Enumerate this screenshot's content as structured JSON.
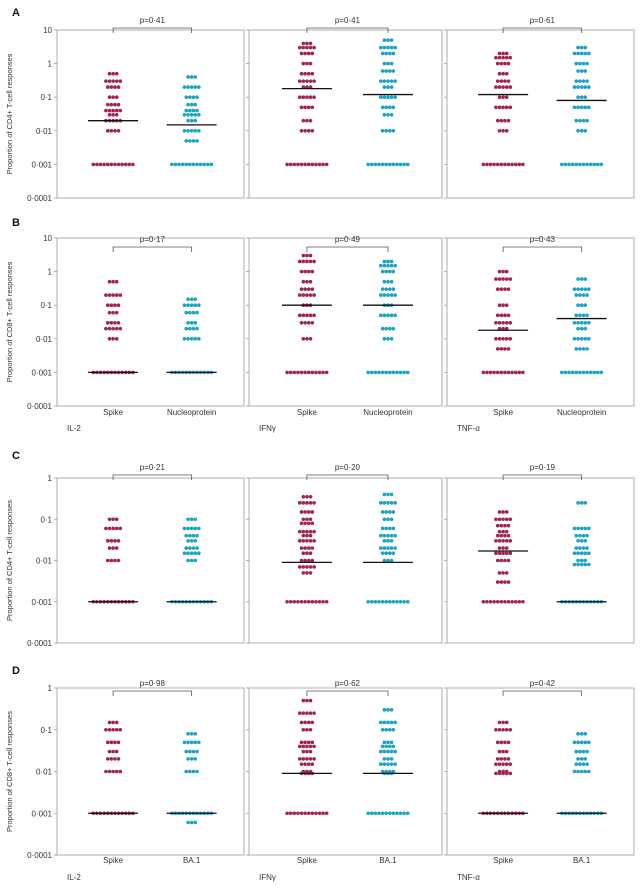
{
  "colors": {
    "spike": "#A3254B",
    "other": "#1AA3C4",
    "frame": "#9a9a9a",
    "median": "#111111"
  },
  "figure": {
    "ytick_labels": [
      "10",
      "1",
      "0·1",
      "0·01",
      "0·001",
      "0·0001"
    ],
    "ytick_labels_short": [
      "1",
      "0·1",
      "0·01",
      "0·001",
      "0·0001"
    ]
  },
  "chart_data": [
    {
      "panel": "A",
      "type": "scatter",
      "ylabel": "Proportion of CD4+ T-cell responses",
      "yscale": "log",
      "ylim": [
        0.0001,
        10
      ],
      "categories": [
        "Spike",
        "Nucleoprotein"
      ],
      "subplots": [
        {
          "cytokine": "IL-2",
          "pvalue": "p=0·41",
          "medians": [
            0.02,
            0.015
          ],
          "series": [
            {
              "name": "Spike",
              "values": [
                0.5,
                0.3,
                0.2,
                0.1,
                0.06,
                0.04,
                0.03,
                0.02,
                0.01,
                0.001
              ]
            },
            {
              "name": "Nucleoprotein",
              "values": [
                0.4,
                0.2,
                0.1,
                0.06,
                0.04,
                0.03,
                0.02,
                0.01,
                0.005,
                0.001
              ]
            }
          ]
        },
        {
          "cytokine": "IFNγ",
          "pvalue": "p=0·41",
          "medians": [
            0.18,
            0.12
          ],
          "series": [
            {
              "name": "Spike",
              "values": [
                4,
                3,
                2,
                1,
                0.5,
                0.3,
                0.2,
                0.1,
                0.05,
                0.02,
                0.01,
                0.001
              ]
            },
            {
              "name": "Nucleoprotein",
              "values": [
                5,
                3,
                2,
                1,
                0.6,
                0.3,
                0.2,
                0.1,
                0.05,
                0.03,
                0.01,
                0.001
              ]
            }
          ]
        },
        {
          "cytokine": "TNF-α",
          "pvalue": "p=0·61",
          "medians": [
            0.12,
            0.08
          ],
          "series": [
            {
              "name": "Spike",
              "values": [
                2,
                1.5,
                1,
                0.5,
                0.3,
                0.2,
                0.1,
                0.05,
                0.02,
                0.01,
                0.001
              ]
            },
            {
              "name": "Nucleoprotein",
              "values": [
                3,
                2,
                1,
                0.6,
                0.3,
                0.2,
                0.1,
                0.05,
                0.02,
                0.01,
                0.001
              ]
            }
          ]
        }
      ]
    },
    {
      "panel": "B",
      "type": "scatter",
      "ylabel": "Proportion of CD8+ T-cell responses",
      "yscale": "log",
      "ylim": [
        0.0001,
        10
      ],
      "categories": [
        "Spike",
        "Nucleoprotein"
      ],
      "subplots": [
        {
          "cytokine": "IL-2",
          "pvalue": "p=0·17",
          "medians": [
            0.001,
            0.001
          ],
          "series": [
            {
              "name": "Spike",
              "values": [
                0.5,
                0.2,
                0.1,
                0.06,
                0.03,
                0.02,
                0.01,
                0.001
              ]
            },
            {
              "name": "Nucleoprotein",
              "values": [
                0.15,
                0.1,
                0.06,
                0.03,
                0.02,
                0.01,
                0.001
              ]
            }
          ]
        },
        {
          "cytokine": "IFNγ",
          "pvalue": "p=0·49",
          "medians": [
            0.1,
            0.1
          ],
          "series": [
            {
              "name": "Spike",
              "values": [
                3,
                2,
                1,
                0.5,
                0.3,
                0.2,
                0.1,
                0.05,
                0.03,
                0.01,
                0.001
              ]
            },
            {
              "name": "Nucleoprotein",
              "values": [
                2,
                1.5,
                1,
                0.5,
                0.3,
                0.2,
                0.1,
                0.05,
                0.02,
                0.01,
                0.001
              ]
            }
          ]
        },
        {
          "cytokine": "TNF-α",
          "pvalue": "p=0·43",
          "medians": [
            0.018,
            0.04
          ],
          "series": [
            {
              "name": "Spike",
              "values": [
                1,
                0.6,
                0.3,
                0.1,
                0.05,
                0.03,
                0.02,
                0.01,
                0.005,
                0.001
              ]
            },
            {
              "name": "Nucleoprotein",
              "values": [
                0.6,
                0.3,
                0.2,
                0.1,
                0.05,
                0.03,
                0.02,
                0.01,
                0.005,
                0.001
              ]
            }
          ]
        }
      ]
    },
    {
      "panel": "C",
      "type": "scatter",
      "ylabel": "Proportion of CD4+ T-cell responses",
      "yscale": "log",
      "ylim": [
        0.0001,
        1
      ],
      "categories": [
        "Spike",
        "BA.1"
      ],
      "subplots": [
        {
          "cytokine": "IL-2",
          "pvalue": "p=0·21",
          "medians": [
            0.001,
            0.001
          ],
          "series": [
            {
              "name": "Spike",
              "values": [
                0.1,
                0.06,
                0.03,
                0.02,
                0.01,
                0.001
              ]
            },
            {
              "name": "BA.1",
              "values": [
                0.1,
                0.06,
                0.04,
                0.03,
                0.02,
                0.015,
                0.01,
                0.001
              ]
            }
          ]
        },
        {
          "cytokine": "IFNγ",
          "pvalue": "p=0·20",
          "medians": [
            0.009,
            0.009
          ],
          "series": [
            {
              "name": "Spike",
              "values": [
                0.35,
                0.25,
                0.15,
                0.1,
                0.08,
                0.05,
                0.04,
                0.03,
                0.02,
                0.015,
                0.01,
                0.007,
                0.005,
                0.001
              ]
            },
            {
              "name": "BA.1",
              "values": [
                0.4,
                0.25,
                0.15,
                0.1,
                0.06,
                0.04,
                0.03,
                0.02,
                0.015,
                0.01,
                0.001
              ]
            }
          ]
        },
        {
          "cytokine": "TNF-α",
          "pvalue": "p=0·19",
          "medians": [
            0.017,
            0.001
          ],
          "series": [
            {
              "name": "Spike",
              "values": [
                0.15,
                0.1,
                0.07,
                0.05,
                0.04,
                0.03,
                0.02,
                0.015,
                0.01,
                0.005,
                0.003,
                0.001
              ]
            },
            {
              "name": "BA.1",
              "values": [
                0.25,
                0.06,
                0.04,
                0.03,
                0.02,
                0.015,
                0.01,
                0.008,
                0.001
              ]
            }
          ]
        }
      ]
    },
    {
      "panel": "D",
      "type": "scatter",
      "ylabel": "Proportion of CD8+ T-cell responses",
      "yscale": "log",
      "ylim": [
        0.0001,
        1
      ],
      "categories": [
        "Spike",
        "BA.1"
      ],
      "subplots": [
        {
          "cytokine": "IL-2",
          "pvalue": "p=0·98",
          "medians": [
            0.001,
            0.001
          ],
          "series": [
            {
              "name": "Spike",
              "values": [
                0.15,
                0.1,
                0.05,
                0.03,
                0.02,
                0.01,
                0.001
              ]
            },
            {
              "name": "BA.1",
              "values": [
                0.08,
                0.05,
                0.03,
                0.02,
                0.01,
                0.001,
                0.0006
              ]
            }
          ]
        },
        {
          "cytokine": "IFNγ",
          "pvalue": "p=0·62",
          "medians": [
            0.009,
            0.009
          ],
          "series": [
            {
              "name": "Spike",
              "values": [
                0.5,
                0.25,
                0.15,
                0.1,
                0.05,
                0.04,
                0.03,
                0.02,
                0.015,
                0.01,
                0.009,
                0.001
              ]
            },
            {
              "name": "BA.1",
              "values": [
                0.3,
                0.15,
                0.1,
                0.05,
                0.04,
                0.03,
                0.02,
                0.015,
                0.01,
                0.009,
                0.001
              ]
            }
          ]
        },
        {
          "cytokine": "TNF-α",
          "pvalue": "p=0·42",
          "medians": [
            0.001,
            0.001
          ],
          "series": [
            {
              "name": "Spike",
              "values": [
                0.15,
                0.1,
                0.05,
                0.03,
                0.02,
                0.015,
                0.01,
                0.009,
                0.001
              ]
            },
            {
              "name": "BA.1",
              "values": [
                0.08,
                0.05,
                0.03,
                0.02,
                0.015,
                0.01,
                0.001
              ]
            }
          ]
        }
      ]
    }
  ]
}
